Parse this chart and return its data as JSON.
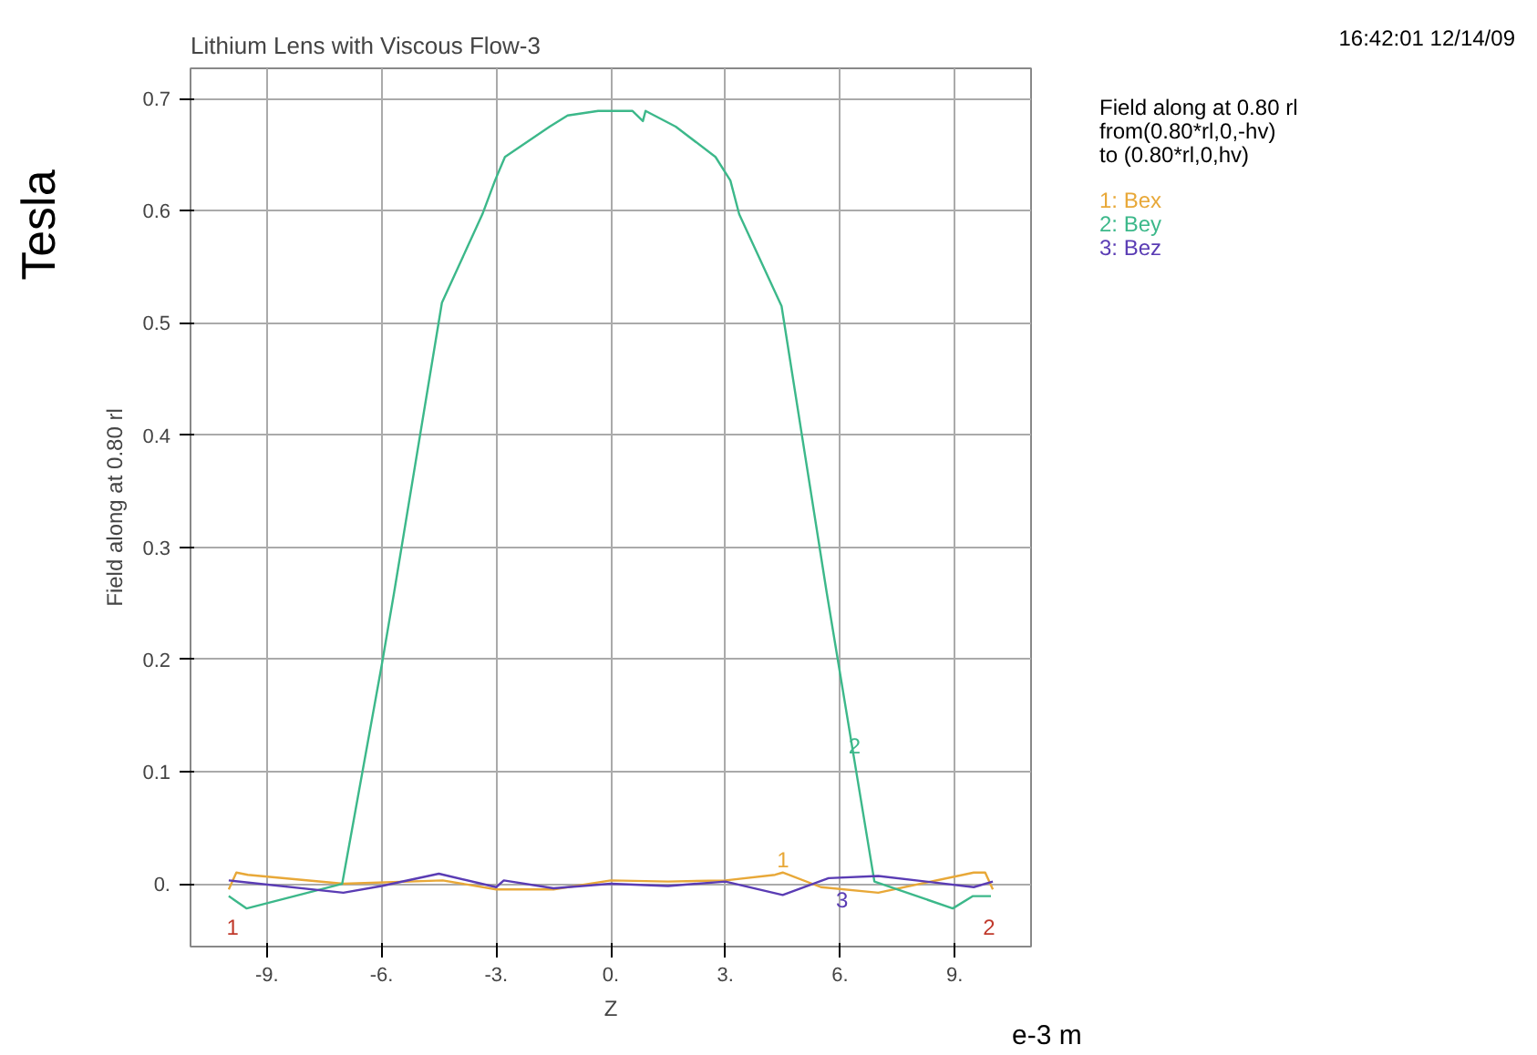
{
  "chart_data": {
    "type": "line",
    "title": "Lithium Lens with Viscous Flow-3",
    "xlabel": "Z",
    "ylabel": "Field along at 0.80 rl",
    "legend_title": "Field along at 0.80 rl\nfrom(0.80*rl,0,-hv)\nto (0.80*rl,0,hv)",
    "grid": true,
    "marker": "none",
    "line_style": "solid",
    "xlim": [
      -11,
      11
    ],
    "ylim": [
      -0.056,
      0.727
    ],
    "xticks": [
      {
        "value": -9,
        "label": "-9."
      },
      {
        "value": -6,
        "label": "-6."
      },
      {
        "value": -3,
        "label": "-3."
      },
      {
        "value": 0,
        "label": "0."
      },
      {
        "value": 3,
        "label": "3."
      },
      {
        "value": 6,
        "label": "6."
      },
      {
        "value": 9,
        "label": "9."
      }
    ],
    "yticks": [
      {
        "value": 0,
        "label": "0."
      },
      0.1,
      0.2,
      0.3,
      0.4,
      0.5,
      0.6,
      0.7
    ],
    "annotations": [
      "16:42:01 12/14/09",
      "Tesla",
      "e-3 m",
      "1",
      "2",
      "2",
      "1",
      "3"
    ],
    "series": [
      {
        "name": "1: Bex",
        "color": "#e8a838",
        "x": [
          -10,
          -9.8,
          -9.5,
          -7,
          -4.4,
          -3,
          -1.5,
          0,
          1.5,
          3,
          4.3,
          4.5,
          5.5,
          7,
          9.5,
          9.8,
          10
        ],
        "values": [
          -0.005,
          0.01,
          0.008,
          0.0,
          0.003,
          -0.005,
          -0.005,
          0.003,
          0.002,
          0.003,
          0.008,
          0.01,
          -0.003,
          -0.008,
          0.01,
          0.01,
          -0.005
        ]
      },
      {
        "name": "2: Bey",
        "color": "#3cb88a",
        "x": [
          -10,
          -9.53,
          -7.03,
          -5.99,
          -5.67,
          -4.42,
          -3.36,
          -3.03,
          -2.77,
          -1.6,
          -1.13,
          -0.33,
          0.57,
          0.84,
          0.91,
          1.7,
          2.74,
          3.13,
          3.36,
          4.47,
          5.65,
          5.96,
          6.9,
          8.95,
          9.48,
          9.95
        ],
        "values": [
          -0.011,
          -0.022,
          0.0,
          0.196,
          0.26,
          0.518,
          0.597,
          0.627,
          0.648,
          0.675,
          0.685,
          0.689,
          0.689,
          0.68,
          0.689,
          0.675,
          0.648,
          0.627,
          0.597,
          0.515,
          0.26,
          0.196,
          0.002,
          -0.022,
          -0.011,
          -0.011
        ]
      },
      {
        "name": "3: Bez",
        "color": "#5a3cb4",
        "x": [
          -10,
          -7,
          -6,
          -4.5,
          -3,
          -2.8,
          -1.5,
          0,
          1.5,
          3,
          4.5,
          5.7,
          7,
          9.5,
          10
        ],
        "values": [
          0.003,
          -0.008,
          -0.002,
          0.009,
          -0.003,
          0.003,
          -0.004,
          0.0,
          -0.002,
          0.002,
          -0.01,
          0.005,
          0.007,
          -0.003,
          0.002
        ]
      }
    ]
  }
}
